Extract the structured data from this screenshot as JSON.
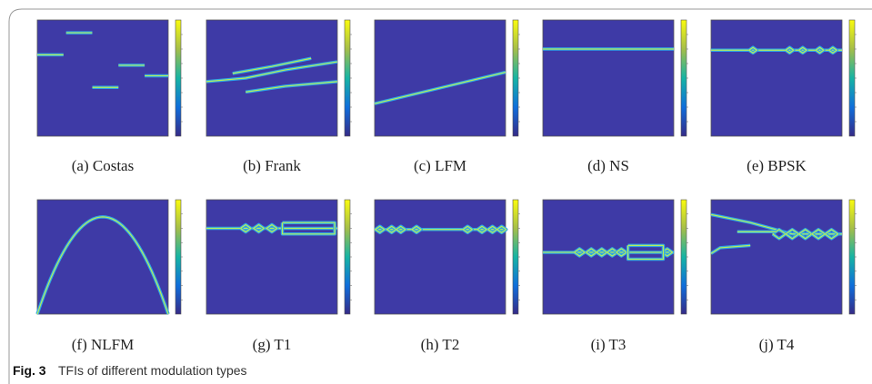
{
  "panels": [
    "(a)  Costas",
    "(b)  Frank",
    "(c)  LFM",
    "(d)  NS",
    "(e)  BPSK",
    "(f)  NLFM",
    "(g)  T1",
    "(h)  T2",
    "(i)  T3",
    "(j)  T4"
  ],
  "caption": {
    "label": "Fig. 3",
    "text": "TFIs of different modulation types"
  }
}
